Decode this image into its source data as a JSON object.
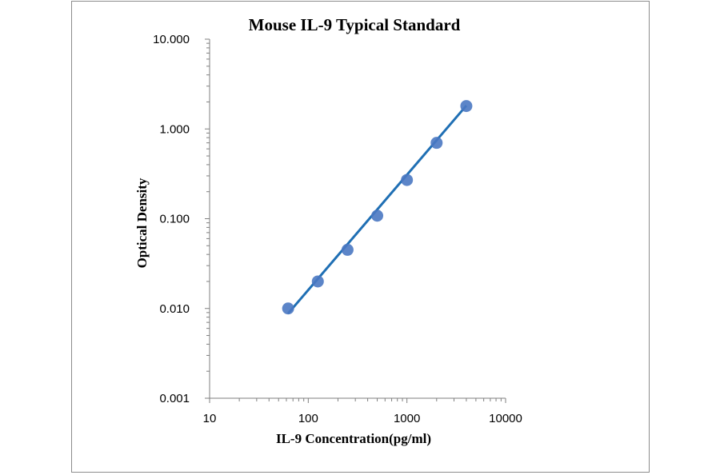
{
  "chart_data": {
    "type": "scatter",
    "title": "Mouse IL-9 Typical Standard",
    "xlabel": "IL-9 Concentration(pg/ml)",
    "ylabel": "Optical Density",
    "x_scale": "log",
    "y_scale": "log",
    "xlim": [
      10,
      10000
    ],
    "ylim": [
      0.001,
      10
    ],
    "x_ticks": [
      "10",
      "100",
      "1000",
      "10000"
    ],
    "y_ticks": [
      "0.001",
      "0.010",
      "0.100",
      "1.000",
      "10.000"
    ],
    "grid": false,
    "legend": "none",
    "colors": {
      "points": "#4a78c2",
      "fit_line": "#1f6fb4",
      "axis": "#7f7f7f",
      "frame": "#8c8c8c"
    },
    "series": [
      {
        "x": [
          62.5,
          125,
          250,
          500,
          1000,
          2000,
          4000
        ],
        "y": [
          0.01,
          0.02,
          0.045,
          0.108,
          0.27,
          0.7,
          1.8
        ]
      }
    ],
    "fit_line": {
      "x": [
        62.5,
        4000
      ],
      "y": [
        0.0088,
        1.82
      ]
    }
  }
}
